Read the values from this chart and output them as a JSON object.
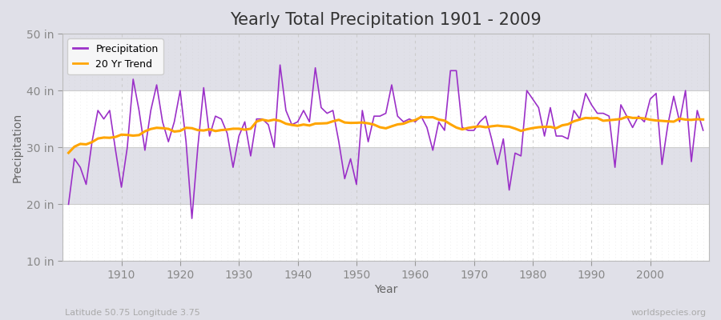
{
  "title": "Yearly Total Precipitation 1901 - 2009",
  "xlabel": "Year",
  "ylabel": "Precipitation",
  "subtitle_left": "Latitude 50.75 Longitude 3.75",
  "subtitle_right": "worldspecies.org",
  "years": [
    1901,
    1902,
    1903,
    1904,
    1905,
    1906,
    1907,
    1908,
    1909,
    1910,
    1911,
    1912,
    1913,
    1914,
    1915,
    1916,
    1917,
    1918,
    1919,
    1920,
    1921,
    1922,
    1923,
    1924,
    1925,
    1926,
    1927,
    1928,
    1929,
    1930,
    1931,
    1932,
    1933,
    1934,
    1935,
    1936,
    1937,
    1938,
    1939,
    1940,
    1941,
    1942,
    1943,
    1944,
    1945,
    1946,
    1947,
    1948,
    1949,
    1950,
    1951,
    1952,
    1953,
    1954,
    1955,
    1956,
    1957,
    1958,
    1959,
    1960,
    1961,
    1962,
    1963,
    1964,
    1965,
    1966,
    1967,
    1968,
    1969,
    1970,
    1971,
    1972,
    1973,
    1974,
    1975,
    1976,
    1977,
    1978,
    1979,
    1980,
    1981,
    1982,
    1983,
    1984,
    1985,
    1986,
    1987,
    1988,
    1989,
    1990,
    1991,
    1992,
    1993,
    1994,
    1995,
    1996,
    1997,
    1998,
    1999,
    2000,
    2001,
    2002,
    2003,
    2004,
    2005,
    2006,
    2007,
    2008,
    2009
  ],
  "precip": [
    20.0,
    28.0,
    26.5,
    23.5,
    31.0,
    36.5,
    35.0,
    36.5,
    29.5,
    23.0,
    30.0,
    42.0,
    36.5,
    29.5,
    36.5,
    41.0,
    34.5,
    31.0,
    34.5,
    40.0,
    31.0,
    17.5,
    30.0,
    40.5,
    32.0,
    35.5,
    35.0,
    32.5,
    26.5,
    32.0,
    34.5,
    28.5,
    35.0,
    35.0,
    34.0,
    30.0,
    44.5,
    36.5,
    34.0,
    34.5,
    36.5,
    34.5,
    44.0,
    37.0,
    36.0,
    36.5,
    31.0,
    24.5,
    28.0,
    23.5,
    36.5,
    31.0,
    35.5,
    35.5,
    36.0,
    41.0,
    35.5,
    34.5,
    35.0,
    34.5,
    35.5,
    33.5,
    29.5,
    34.5,
    33.0,
    43.5,
    43.5,
    33.5,
    33.0,
    33.0,
    34.5,
    35.5,
    31.5,
    27.0,
    31.5,
    22.5,
    29.0,
    28.5,
    40.0,
    38.5,
    37.0,
    32.0,
    37.0,
    32.0,
    32.0,
    31.5,
    36.5,
    35.0,
    39.5,
    37.5,
    36.0,
    36.0,
    35.5,
    26.5,
    37.5,
    35.5,
    33.5,
    35.5,
    34.5,
    38.5,
    39.5,
    27.0,
    34.0,
    39.0,
    34.5,
    40.0,
    27.5,
    36.5,
    33.0
  ],
  "precip_color": "#9B30C8",
  "trend_color": "#FFA500",
  "ylim": [
    10,
    50
  ],
  "yticks": [
    10,
    20,
    30,
    40,
    50
  ],
  "ytick_labels": [
    "10 in",
    "20 in",
    "30 in",
    "40 in",
    "50 in"
  ],
  "outer_bg_color": "#E0E0E8",
  "plot_bg_color": "#E8E8F0",
  "band_color_light": "#FFFFFF",
  "band_color_dark": "#E0E0E8",
  "grid_color": "#CCCCCC",
  "title_fontsize": 15,
  "axis_fontsize": 10,
  "legend_fontsize": 9,
  "trend_window": 20,
  "xlim_start": 1900,
  "xlim_end": 2010
}
